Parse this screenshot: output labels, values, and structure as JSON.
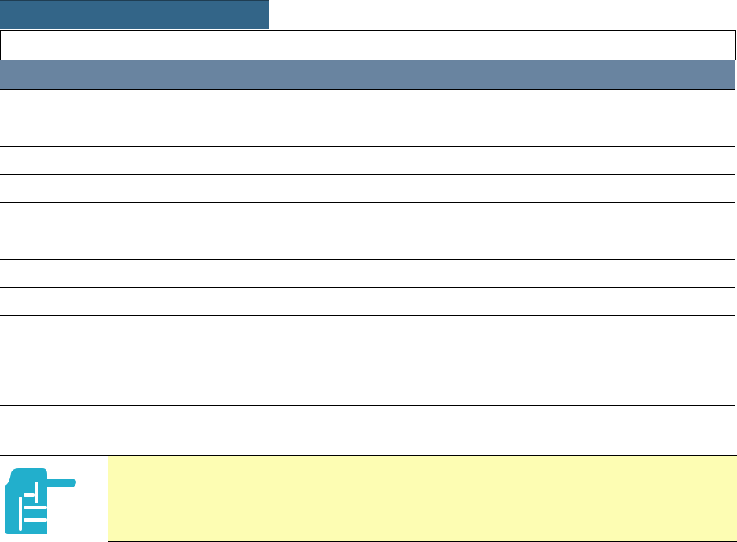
{
  "colors": {
    "tab": "#336588",
    "table_header": "#6984a0",
    "note_background": "#fdfdb3",
    "note_icon": "#22afcc"
  },
  "note": {
    "icon": "pointing-hand-icon"
  }
}
